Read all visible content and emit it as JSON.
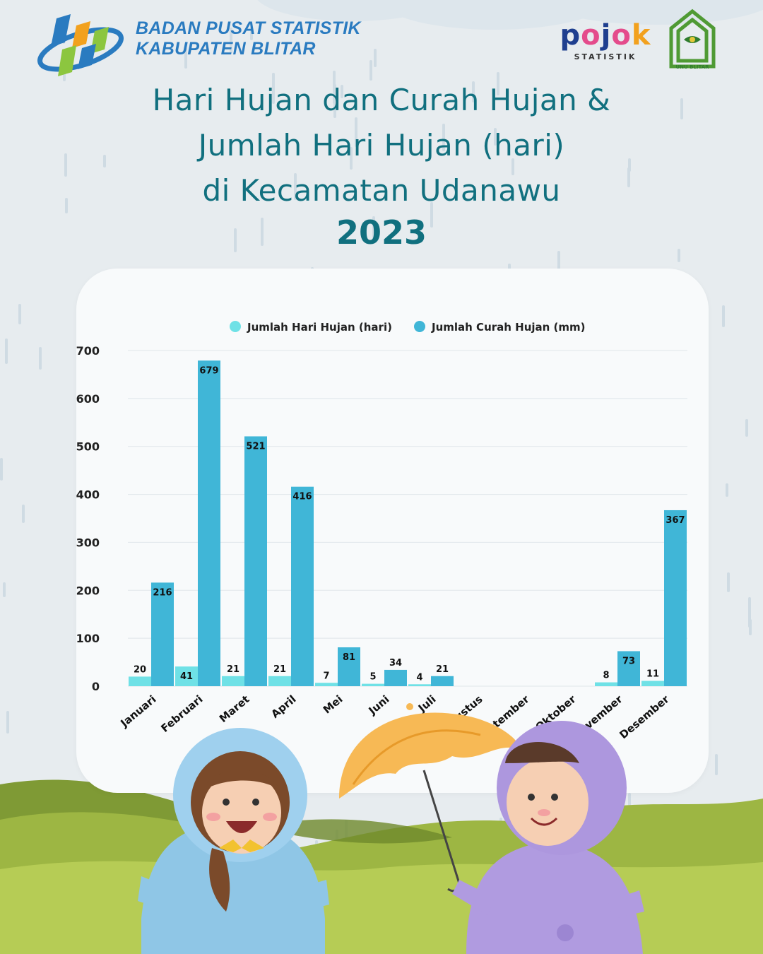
{
  "header": {
    "org_line1": "BADAN PUSAT STATISTIK",
    "org_line2": "KABUPATEN BLITAR",
    "pojok_word": "pojok",
    "pojok_sub": "STATISTIK",
    "unu_name": "UNU BLITAR"
  },
  "title": {
    "line1": "Hari Hujan dan Curah Hujan &",
    "line2": "Jumlah Hari Hujan (hari)",
    "line3": "di Kecamatan Udanawu",
    "year": "2023"
  },
  "colors": {
    "series_hari": "#6fe1e6",
    "series_curah": "#40b6d7",
    "title": "#11707f"
  },
  "chart_data": {
    "type": "bar",
    "categories": [
      "Januari",
      "Februari",
      "Maret",
      "April",
      "Mei",
      "Juni",
      "Juli",
      "Agustus",
      "September",
      "Oktober",
      "November",
      "Desember"
    ],
    "series": [
      {
        "name": "Jumlah Hari Hujan (hari)",
        "values": [
          20,
          41,
          21,
          21,
          7,
          5,
          4,
          null,
          null,
          null,
          8,
          11
        ]
      },
      {
        "name": "Jumlah Curah Hujan (mm)",
        "values": [
          216,
          679,
          521,
          416,
          81,
          34,
          21,
          null,
          null,
          null,
          73,
          367
        ]
      }
    ],
    "yticks": [
      0,
      100,
      200,
      300,
      400,
      500,
      600,
      700
    ],
    "ylim": [
      0,
      700
    ],
    "grid": true,
    "legend": "top-center",
    "data_labels": true
  }
}
